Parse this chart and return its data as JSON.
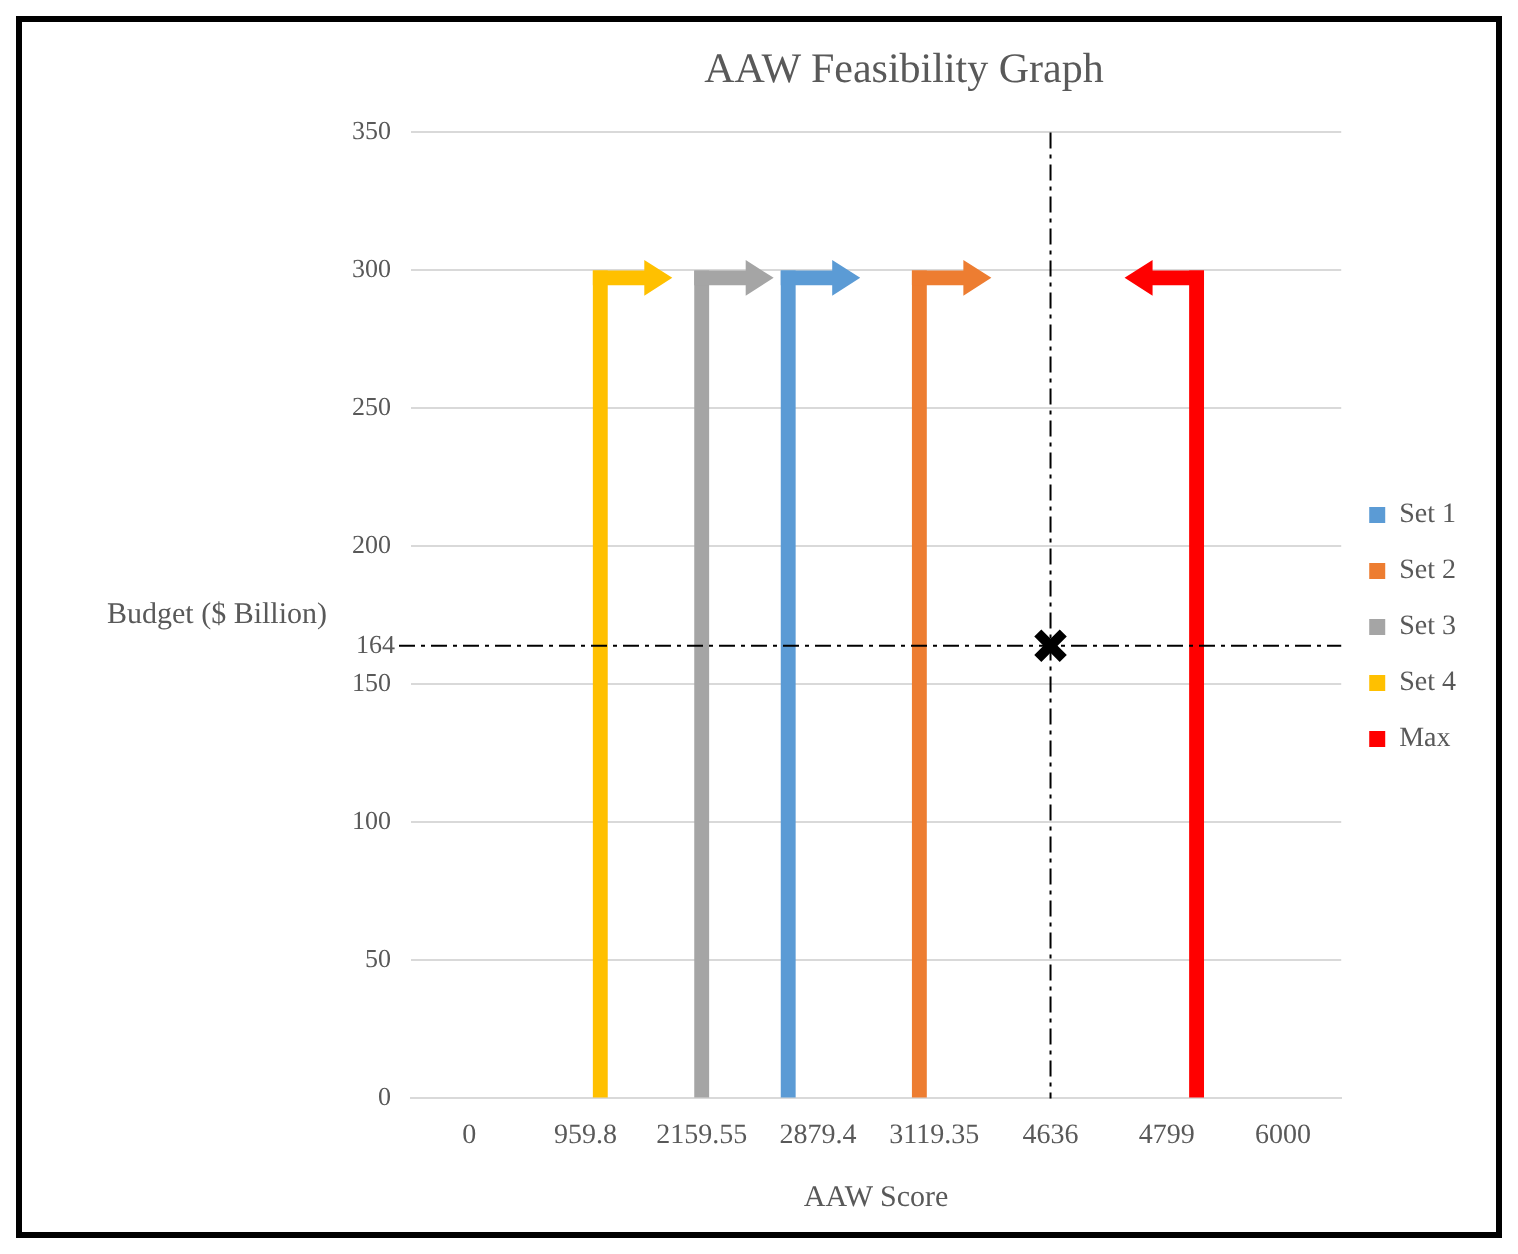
{
  "chart_data": {
    "type": "bar",
    "title": "AAW Feasibility Graph",
    "xlabel": "AAW Score",
    "ylabel": "Budget ($ Billion)",
    "categories": [
      "0",
      "959.8",
      "2159.55",
      "2879.4",
      "3119.35",
      "4636",
      "4799",
      "6000"
    ],
    "series": [
      {
        "name": "Set 1",
        "color": "#5b9bd5",
        "values": [
          null,
          null,
          null,
          300,
          null,
          null,
          null,
          null
        ]
      },
      {
        "name": "Set 2",
        "color": "#ed7d31",
        "values": [
          null,
          null,
          null,
          null,
          300,
          null,
          null,
          null
        ]
      },
      {
        "name": "Set 3",
        "color": "#a5a5a5",
        "values": [
          null,
          null,
          300,
          null,
          null,
          null,
          null,
          null
        ]
      },
      {
        "name": "Set 4",
        "color": "#ffc000",
        "values": [
          null,
          300,
          null,
          null,
          null,
          null,
          null,
          null
        ]
      },
      {
        "name": "Max",
        "color": "#ff0000",
        "values": [
          null,
          null,
          null,
          null,
          null,
          null,
          300,
          null
        ]
      },
      {
        "type": "scatter",
        "color": "#000000",
        "marker": "cross",
        "values": [
          null,
          null,
          null,
          null,
          null,
          164,
          null,
          null
        ]
      }
    ],
    "ylim": [
      0,
      350
    ],
    "yticks": [
      0,
      50,
      100,
      150,
      200,
      250,
      300,
      350
    ],
    "grid": "y",
    "legend": "right",
    "ref_lines": [
      {
        "axis": "y",
        "value": 164,
        "label": "164",
        "line_style": "dashed"
      },
      {
        "axis": "x",
        "value": "4636",
        "line_style": "dashed"
      }
    ]
  }
}
